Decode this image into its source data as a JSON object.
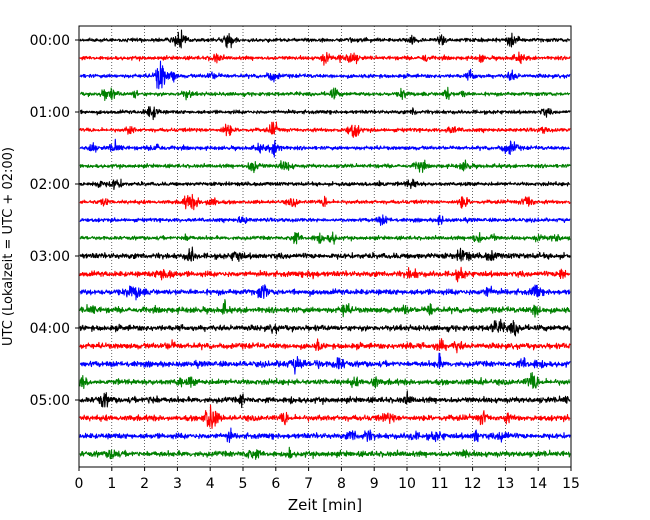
{
  "chart_data": {
    "type": "line",
    "title": "",
    "xlabel": "Zeit  [min]",
    "ylabel": "UTC (Lokalzeit = UTC + 02:00)",
    "xlim": [
      0,
      15
    ],
    "x_ticks": [
      "0",
      "1",
      "2",
      "3",
      "4",
      "5",
      "6",
      "7",
      "8",
      "9",
      "10",
      "11",
      "12",
      "13",
      "14",
      "15"
    ],
    "y_tick_labels": [
      {
        "label": "00:00",
        "trace_index": 0
      },
      {
        "label": "01:00",
        "trace_index": 4
      },
      {
        "label": "02:00",
        "trace_index": 8
      },
      {
        "label": "03:00",
        "trace_index": 12
      },
      {
        "label": "04:00",
        "trace_index": 16
      },
      {
        "label": "05:00",
        "trace_index": 20
      }
    ],
    "trace_count": 24,
    "trace_interval_minutes": 15,
    "trace_colors": [
      "#000000",
      "#ff0000",
      "#0000ff",
      "#008000"
    ],
    "grid": "vertical dotted lines at each minute",
    "legend": "none"
  }
}
